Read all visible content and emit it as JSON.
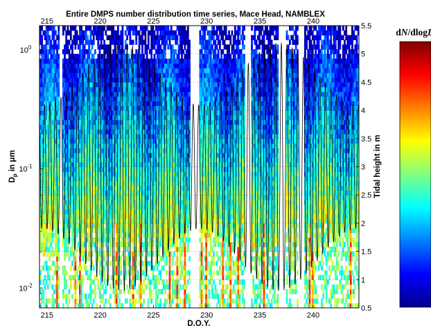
{
  "chart_data": {
    "type": "heatmap",
    "title": "Entire DMPS number distribution time series, Mace Head, NAMBLEX",
    "xlabel": "D.O.Y.",
    "ylabel": "D_p in μm",
    "ylabel_parts": {
      "main": "D",
      "sub": "p",
      "rest": " in μm"
    },
    "y2label": "Tidal height in m",
    "colorbar_title": "dN/dlogD",
    "colorbar_title_parts": {
      "pre": "d",
      "ital1": "N",
      "mid": "/dlog",
      "ital2": "D"
    },
    "xlim": [
      214.3,
      244.3
    ],
    "x_ticks": [
      215,
      220,
      225,
      230,
      235,
      240
    ],
    "x_tick_labels": [
      "215",
      "220",
      "225",
      "230",
      "235",
      "240"
    ],
    "ylim": [
      0.0068,
      1.6
    ],
    "y_scale": "log",
    "y_ticks": [
      0.01,
      0.1,
      1
    ],
    "y_tick_labels": [
      {
        "base": "10",
        "exp": "-2"
      },
      {
        "base": "10",
        "exp": "-1"
      },
      {
        "base": "10",
        "exp": "0"
      }
    ],
    "y2lim": [
      0.5,
      5.5
    ],
    "y2_ticks": [
      0.5,
      1,
      1.5,
      2,
      2.5,
      3,
      3.5,
      4,
      4.5,
      5,
      5.5
    ],
    "y2_tick_labels": [
      "0.5",
      "1",
      "1.5",
      "2",
      "2.5",
      "3",
      "3.5",
      "4",
      "4.5",
      "5",
      "5.5"
    ],
    "grid": true,
    "colormap": "jet",
    "colormap_stops": [
      "#00008f",
      "#0000ff",
      "#0080ff",
      "#00ffff",
      "#80ff80",
      "#ffff00",
      "#ff8000",
      "#ff0000",
      "#800000"
    ],
    "series": [
      {
        "kind": "line",
        "color": "#000000",
        "tide_semidiurnal_period_days": 0.5175,
        "tide_range_m": [
          0.8,
          5.2
        ]
      }
    ],
    "data_gaps_doy": [
      [
        216.1,
        216.5
      ],
      [
        228.5,
        229.3
      ],
      [
        233.6,
        234.1
      ],
      [
        236.8,
        237.4
      ],
      [
        238.6,
        239.2
      ]
    ]
  }
}
